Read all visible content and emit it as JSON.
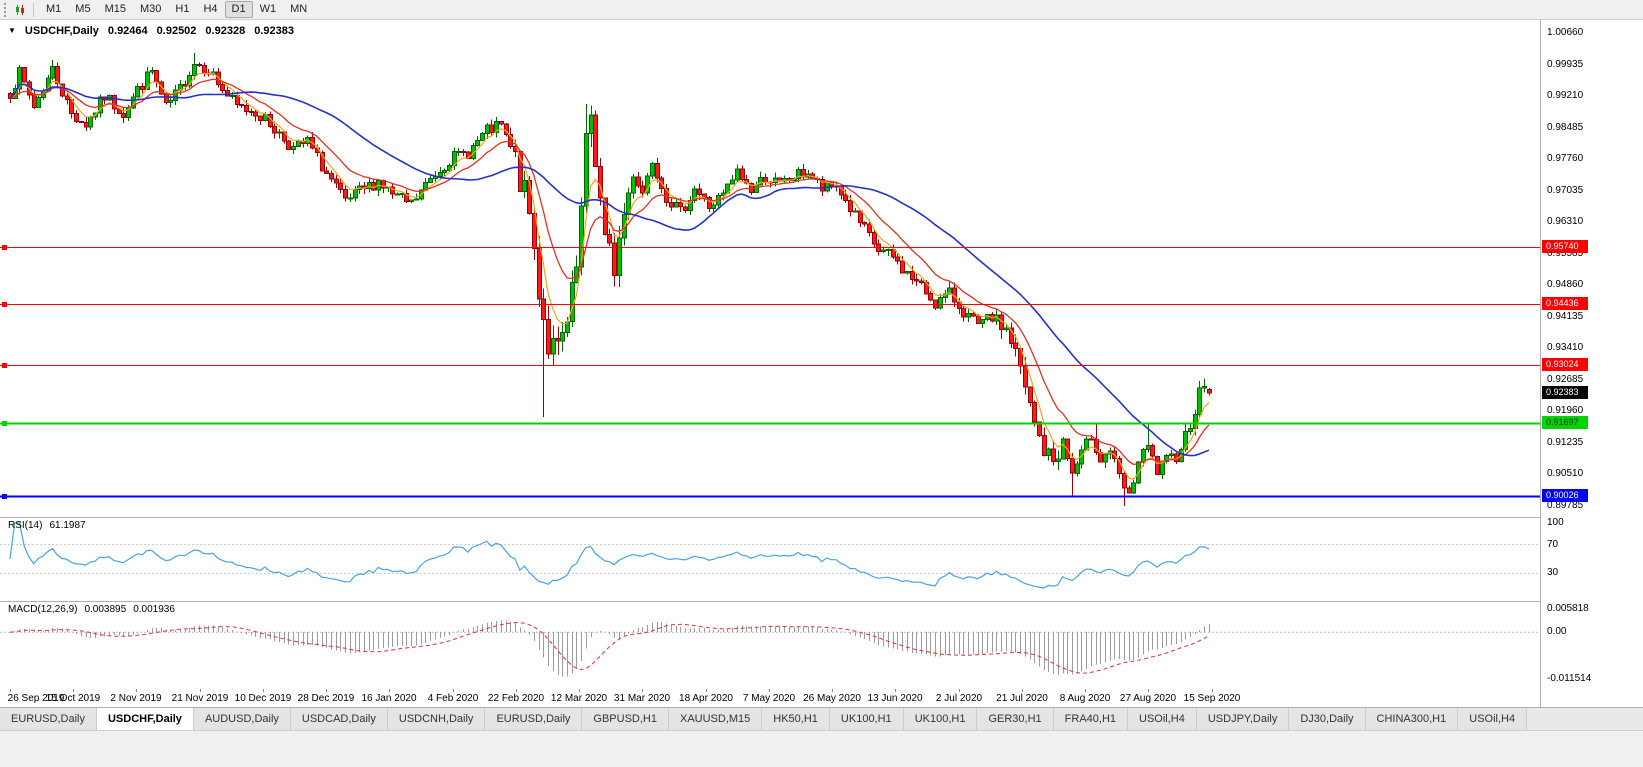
{
  "toolbar": {
    "timeframes": [
      {
        "label": "M1",
        "active": false
      },
      {
        "label": "M5",
        "active": false
      },
      {
        "label": "M15",
        "active": false
      },
      {
        "label": "M30",
        "active": false
      },
      {
        "label": "H1",
        "active": false
      },
      {
        "label": "H4",
        "active": false
      },
      {
        "label": "D1",
        "active": true
      },
      {
        "label": "W1",
        "active": false
      },
      {
        "label": "MN",
        "active": false
      }
    ]
  },
  "chart_header": {
    "collapse_glyph": "▼",
    "symbol": "USDCHF,Daily",
    "open": "0.92464",
    "high": "0.92502",
    "low": "0.92328",
    "close": "0.92383"
  },
  "price_axis_ticks": [
    "1.00660",
    "0.99935",
    "0.99210",
    "0.98485",
    "0.97760",
    "0.97035",
    "0.96310",
    "0.95585",
    "0.94860",
    "0.94135",
    "0.93410",
    "0.92685",
    "0.91960",
    "0.91235",
    "0.90510",
    "0.89785"
  ],
  "rsi": {
    "label": "RSI(14)",
    "value": "61.1987",
    "ticks": [
      {
        "label": "100",
        "value": 100
      },
      {
        "label": "70",
        "value": 70
      },
      {
        "label": "30",
        "value": 30
      }
    ]
  },
  "macd": {
    "label": "MACD(12,26,9)",
    "main_value": "0.003895",
    "signal_value": "0.001936",
    "ticks": [
      {
        "label": "0.005818",
        "value": 0.005818
      },
      {
        "label": "0.00",
        "value": 0
      },
      {
        "label": "-0.011514",
        "value": -0.011514
      }
    ]
  },
  "tabs": [
    {
      "label": "EURUSD,Daily",
      "active": false
    },
    {
      "label": "USDCHF,Daily",
      "active": true
    },
    {
      "label": "AUDUSD,Daily",
      "active": false
    },
    {
      "label": "USDCAD,Daily",
      "active": false
    },
    {
      "label": "USDCNH,Daily",
      "active": false
    },
    {
      "label": "EURUSD,Daily",
      "active": false
    },
    {
      "label": "GBPUSD,H1",
      "active": false
    },
    {
      "label": "XAUUSD,M15",
      "active": false
    },
    {
      "label": "HK50,H1",
      "active": false
    },
    {
      "label": "UK100,H1",
      "active": false
    },
    {
      "label": "UK100,H1",
      "active": false
    },
    {
      "label": "GER30,H1",
      "active": false
    },
    {
      "label": "FRA40,H1",
      "active": false
    },
    {
      "label": "USOil,H4",
      "active": false
    },
    {
      "label": "USDJPY,Daily",
      "active": false
    },
    {
      "label": "DJ30,Daily",
      "active": false
    },
    {
      "label": "CHINA300,H1",
      "active": false
    },
    {
      "label": "USOil,H4",
      "active": false
    }
  ],
  "chart_data": {
    "type": "candlestick",
    "title": "USDCHF,Daily",
    "symbol": "USDCHF",
    "timeframe": "Daily",
    "num_candles": 255,
    "price_top": 1.0066,
    "price_bottom": 0.89785,
    "price_tick_step": 0.00725,
    "current_candle": {
      "open": 0.92464,
      "high": 0.92502,
      "low": 0.92328,
      "close": 0.92383
    },
    "current_price_badge": {
      "price": 0.92383,
      "label": "0.92383",
      "bg": "#000000",
      "text_color": "#ffffff"
    },
    "hlines": [
      {
        "price": 0.9574,
        "label": "0.95740",
        "color": "#ff0000",
        "width": 1,
        "text_color": "#ffffff"
      },
      {
        "price": 0.94436,
        "label": "0.94436",
        "color": "#ff0000",
        "width": 1,
        "text_color": "#ffffff"
      },
      {
        "price": 0.93024,
        "label": "0.93024",
        "color": "#ff0000",
        "width": 1,
        "text_color": "#ffffff"
      },
      {
        "price": 0.91697,
        "label": "0.91697",
        "color": "#00d400",
        "width": 2,
        "text_color": "#003300"
      },
      {
        "price": 0.90026,
        "label": "0.90026",
        "color": "#0000ff",
        "width": 2,
        "text_color": "#ffffff"
      }
    ],
    "moving_averages": [
      {
        "method": "ema",
        "period": 5,
        "color": "#f2a71b",
        "width": 1.2
      },
      {
        "method": "ema",
        "period": 13,
        "color": "#e03123",
        "width": 1.3
      },
      {
        "method": "sma",
        "period": 34,
        "color": "#2433c4",
        "width": 1.6
      }
    ],
    "colors": {
      "up_fill": "#00bf00",
      "up_border": "#006600",
      "down_fill": "#ff1a1a",
      "down_border": "#990000"
    },
    "close_waypoints": [
      [
        0,
        0.993
      ],
      [
        2,
        0.9972
      ],
      [
        5,
        0.9898
      ],
      [
        9,
        0.9982
      ],
      [
        13,
        0.988
      ],
      [
        16,
        0.9856
      ],
      [
        20,
        0.992
      ],
      [
        24,
        0.9882
      ],
      [
        27,
        0.9935
      ],
      [
        30,
        0.9978
      ],
      [
        33,
        0.9892
      ],
      [
        36,
        0.9938
      ],
      [
        39,
        0.9998
      ],
      [
        42,
        0.9984
      ],
      [
        45,
        0.9936
      ],
      [
        48,
        0.9896
      ],
      [
        52,
        0.9886
      ],
      [
        56,
        0.9846
      ],
      [
        60,
        0.98
      ],
      [
        63,
        0.9816
      ],
      [
        67,
        0.9742
      ],
      [
        71,
        0.9676
      ],
      [
        74,
        0.97
      ],
      [
        78,
        0.9726
      ],
      [
        81,
        0.9694
      ],
      [
        85,
        0.9672
      ],
      [
        89,
        0.973
      ],
      [
        93,
        0.9776
      ],
      [
        97,
        0.9792
      ],
      [
        101,
        0.984
      ],
      [
        104,
        0.9852
      ],
      [
        107,
        0.9768
      ],
      [
        110,
        0.965
      ],
      [
        112,
        0.948
      ],
      [
        114,
        0.935
      ],
      [
        116,
        0.933
      ],
      [
        118,
        0.939
      ],
      [
        120,
        0.952
      ],
      [
        121,
        0.965
      ],
      [
        122,
        0.98
      ],
      [
        123,
        0.9878
      ],
      [
        124,
        0.978
      ],
      [
        126,
        0.958
      ],
      [
        128,
        0.9532
      ],
      [
        130,
        0.965
      ],
      [
        132,
        0.9744
      ],
      [
        134,
        0.97
      ],
      [
        136,
        0.9776
      ],
      [
        139,
        0.969
      ],
      [
        142,
        0.9652
      ],
      [
        145,
        0.971
      ],
      [
        148,
        0.9666
      ],
      [
        151,
        0.9692
      ],
      [
        154,
        0.9744
      ],
      [
        157,
        0.9706
      ],
      [
        160,
        0.9736
      ],
      [
        163,
        0.9716
      ],
      [
        166,
        0.9736
      ],
      [
        169,
        0.9746
      ],
      [
        172,
        0.9706
      ],
      [
        175,
        0.9716
      ],
      [
        178,
        0.9662
      ],
      [
        181,
        0.9612
      ],
      [
        184,
        0.9566
      ],
      [
        187,
        0.955
      ],
      [
        190,
        0.9512
      ],
      [
        193,
        0.9482
      ],
      [
        196,
        0.9446
      ],
      [
        199,
        0.9466
      ],
      [
        202,
        0.9426
      ],
      [
        205,
        0.939
      ],
      [
        208,
        0.9412
      ],
      [
        211,
        0.9386
      ],
      [
        213,
        0.933
      ],
      [
        215,
        0.9246
      ],
      [
        217,
        0.9166
      ],
      [
        219,
        0.9106
      ],
      [
        221,
        0.9082
      ],
      [
        223,
        0.9126
      ],
      [
        225,
        0.9052
      ],
      [
        227,
        0.9096
      ],
      [
        229,
        0.9142
      ],
      [
        231,
        0.9086
      ],
      [
        233,
        0.9108
      ],
      [
        235,
        0.9042
      ],
      [
        237,
        0.8996
      ],
      [
        239,
        0.908
      ],
      [
        241,
        0.9112
      ],
      [
        243,
        0.9056
      ],
      [
        245,
        0.908
      ],
      [
        247,
        0.9096
      ],
      [
        249,
        0.914
      ],
      [
        251,
        0.9205
      ],
      [
        253,
        0.9262
      ],
      [
        254,
        0.92383
      ]
    ],
    "wick_events": [
      {
        "i": 9,
        "high": 1.0004
      },
      {
        "i": 39,
        "high": 1.002
      },
      {
        "i": 113,
        "low": 0.9183
      },
      {
        "i": 122,
        "high": 0.9903
      },
      {
        "i": 225,
        "low": 0.9
      },
      {
        "i": 230,
        "high": 0.9171
      },
      {
        "i": 236,
        "low": 0.8978
      },
      {
        "i": 241,
        "high": 0.9166
      },
      {
        "i": 253,
        "high": 0.9272
      }
    ],
    "volatility_zones": [
      {
        "from": 106,
        "to": 130,
        "amp": 0.0038
      },
      {
        "from": 210,
        "to": 222,
        "amp": 0.0024
      },
      {
        "from": 249,
        "to": 254,
        "amp": 0.002
      }
    ],
    "base_noise": 0.0015,
    "seed": 7,
    "label_every_candles": 13.4,
    "x_labels": [
      "26 Sep 2019",
      "15 Oct 2019",
      "2 Nov 2019",
      "21 Nov 2019",
      "10 Dec 2019",
      "28 Dec 2019",
      "16 Jan 2020",
      "4 Feb 2020",
      "22 Feb 2020",
      "12 Mar 2020",
      "31 Mar 2020",
      "18 Apr 2020",
      "7 May 2020",
      "26 May 2020",
      "13 Jun 2020",
      "2 Jul 2020",
      "21 Jul 2020",
      "8 Aug 2020",
      "27 Aug 2020",
      "15 Sep 2020"
    ],
    "indicators": {
      "rsi": {
        "period": 14,
        "color": "#4aa3df",
        "levels": [
          70,
          30
        ]
      },
      "macd": {
        "fast": 12,
        "slow": 26,
        "signal": 9,
        "histogram_color": "#9c9c9c",
        "signal_color": "#e03030",
        "axis_top": 0.0062,
        "axis_bottom": -0.0125
      }
    }
  }
}
